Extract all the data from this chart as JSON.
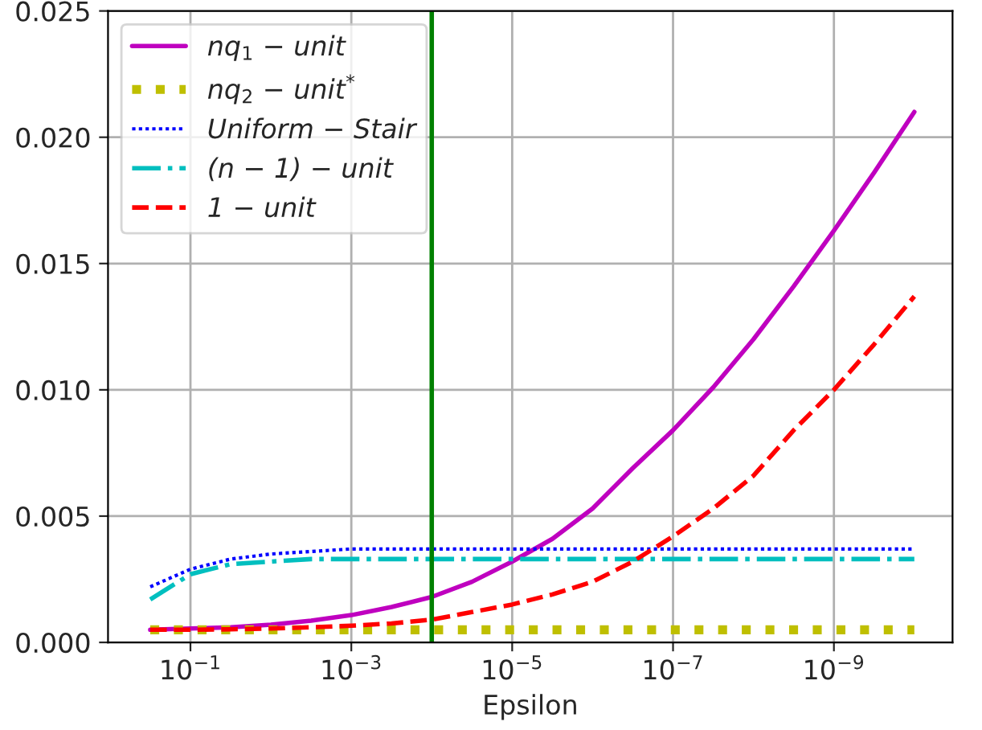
{
  "chart_data": {
    "type": "line",
    "xlabel": "Epsilon",
    "x": [
      0.316,
      0.1,
      0.0316,
      0.01,
      0.00316,
      0.001,
      0.000316,
      0.0001,
      3.16e-05,
      1e-05,
      3.16e-06,
      1e-06,
      3.16e-07,
      1e-07,
      3.16e-08,
      1e-08,
      3.16e-09,
      1e-09,
      3.16e-10,
      1e-10
    ],
    "series": [
      {
        "name": "nq$_{1}$ − unit",
        "color": "#bf00bf",
        "line_style": "solid",
        "values": [
          0.0005,
          0.00055,
          0.0006,
          0.0007,
          0.00086,
          0.00108,
          0.0014,
          0.0018,
          0.0024,
          0.0032,
          0.0041,
          0.0053,
          0.0069,
          0.0084,
          0.0101,
          0.012,
          0.0141,
          0.0163,
          0.0186,
          0.021
        ]
      },
      {
        "name": "nq$_{2}$ − unit$^{*}$",
        "color": "#bfbf00",
        "line_style": "dotted",
        "values": [
          0.0005,
          0.0005,
          0.0005,
          0.0005,
          0.0005,
          0.0005,
          0.0005,
          0.0005,
          0.0005,
          0.0005,
          0.0005,
          0.0005,
          0.0005,
          0.0005,
          0.0005,
          0.0005,
          0.0005,
          0.0005,
          0.0005,
          0.0005
        ]
      },
      {
        "name": "Uniform − Stair",
        "color": "#0000ff",
        "line_style": "sparse dotted",
        "values": [
          0.0022,
          0.0029,
          0.0033,
          0.0035,
          0.0036,
          0.0037,
          0.0037,
          0.0037,
          0.0037,
          0.0037,
          0.0037,
          0.0037,
          0.0037,
          0.0037,
          0.0037,
          0.0037,
          0.0037,
          0.0037,
          0.0037,
          0.0037
        ]
      },
      {
        "name": "(n − 1) − unit",
        "color": "#00bfbf",
        "line_style": "dashdot",
        "values": [
          0.0017,
          0.0027,
          0.0031,
          0.0032,
          0.0033,
          0.0033,
          0.0033,
          0.0033,
          0.0033,
          0.0033,
          0.0033,
          0.0033,
          0.0033,
          0.0033,
          0.0033,
          0.0033,
          0.0033,
          0.0033,
          0.0033,
          0.0033
        ]
      },
      {
        "name": "1 − unit",
        "color": "#ff0000",
        "line_style": "dashed",
        "values": [
          0.0005,
          0.0005,
          0.00052,
          0.00055,
          0.0006,
          0.00066,
          0.00075,
          0.0009,
          0.0012,
          0.0015,
          0.0019,
          0.0024,
          0.0032,
          0.0042,
          0.0053,
          0.0066,
          0.0084,
          0.01,
          0.0118,
          0.0137
        ]
      }
    ],
    "log": "x",
    "xlim": [
      1.059,
      3.35e-11
    ],
    "xticks": [
      {
        "value": 0.1,
        "label": "10$^{−1}$"
      },
      {
        "value": 0.001,
        "label": "10$^{−3}$"
      },
      {
        "value": 1e-05,
        "label": "10$^{−5}$"
      },
      {
        "value": 1e-07,
        "label": "10$^{−7}$"
      },
      {
        "value": 1e-09,
        "label": "10$^{−9}$"
      }
    ],
    "ylim": [
      0,
      0.025
    ],
    "yticks": [
      {
        "value": 0,
        "label": "0.000"
      },
      {
        "value": 0.005,
        "label": "0.005"
      },
      {
        "value": 0.01,
        "label": "0.010"
      },
      {
        "value": 0.015,
        "label": "0.015"
      },
      {
        "value": 0.02,
        "label": "0.020"
      },
      {
        "value": 0.025,
        "label": "0.025"
      }
    ],
    "ref_lines": [
      {
        "axis": "x",
        "value": 0.0001,
        "label": null,
        "color": "#008000",
        "line_style": "solid"
      }
    ],
    "grid": true,
    "legend": "top left"
  }
}
